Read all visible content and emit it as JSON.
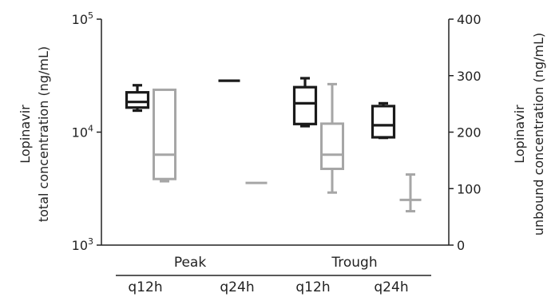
{
  "chart_data": {
    "type": "boxplot",
    "left_axis": {
      "label_line1": "Lopinavir",
      "label_line2": "total concentration (ng/mL)",
      "scale": "log",
      "range": [
        1000,
        100000
      ],
      "ticks": [
        {
          "value": 1000,
          "base": "10",
          "exp": "3"
        },
        {
          "value": 10000,
          "base": "10",
          "exp": "4"
        },
        {
          "value": 100000,
          "base": "10",
          "exp": "5"
        }
      ]
    },
    "right_axis": {
      "label_line1": "Lopinavir",
      "label_line2": "unbound concentration (ng/mL)",
      "scale": "linear",
      "range": [
        0,
        400
      ],
      "ticks": [
        0,
        100,
        200,
        300,
        400
      ]
    },
    "groups": [
      {
        "label": "Peak",
        "categories": [
          "q12h",
          "q24h"
        ]
      },
      {
        "label": "Trough",
        "categories": [
          "q12h",
          "q24h"
        ]
      }
    ],
    "series": [
      {
        "color": "#1a1a1a",
        "axis": "left",
        "boxes": [
          {
            "group": "Peak",
            "category": "q12h",
            "min": 15500,
            "q1": 16500,
            "median": 18500,
            "q3": 22500,
            "max": 26000
          },
          {
            "group": "Peak",
            "category": "q24h",
            "single": 28500
          },
          {
            "group": "Trough",
            "category": "q12h",
            "min": 11300,
            "q1": 11800,
            "median": 18000,
            "q3": 25000,
            "max": 30000
          },
          {
            "group": "Trough",
            "category": "q24h",
            "min": 8900,
            "q1": 9000,
            "median": 11500,
            "q3": 17000,
            "max": 18000
          }
        ]
      },
      {
        "color": "#a6a6a6",
        "axis": "right",
        "boxes": [
          {
            "group": "Peak",
            "category": "q12h",
            "min": 113,
            "q1": 117,
            "median": 160,
            "q3": 275,
            "max": 275
          },
          {
            "group": "Peak",
            "category": "q24h",
            "single": 110
          },
          {
            "group": "Trough",
            "category": "q12h",
            "min": 93,
            "q1": 135,
            "median": 160,
            "q3": 215,
            "max": 285
          },
          {
            "group": "Trough",
            "category": "q24h",
            "min": 60,
            "q1": 80,
            "median": 80,
            "q3": 80,
            "max": 125
          }
        ]
      }
    ]
  }
}
